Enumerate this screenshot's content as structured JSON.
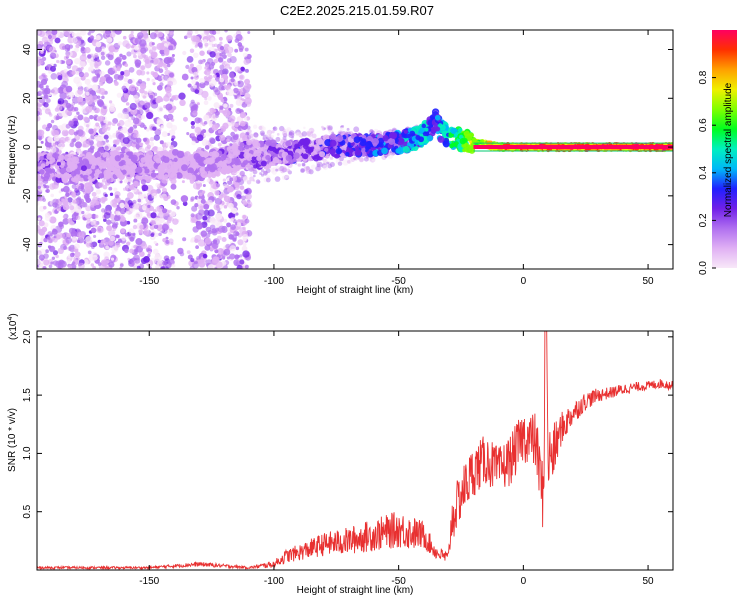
{
  "title": "C2E2.2025.215.01.59.R07",
  "colors": {
    "snr_line": "#e83030",
    "axis": "#000000",
    "colormap": [
      "#f8e8f8",
      "#e0b0f4",
      "#b070f0",
      "#7020e8",
      "#2020ff",
      "#00b8f8",
      "#00f0c0",
      "#00ff20",
      "#80ff00",
      "#f0f000",
      "#ffa000",
      "#ff3000",
      "#ff0060"
    ]
  },
  "chart_data": [
    {
      "type": "heatmap",
      "title": "C2E2.2025.215.01.59.R07",
      "xlabel": "Height of straight line (km)",
      "ylabel": "Frequency (Hz)",
      "xlim": [
        -195,
        60
      ],
      "ylim": [
        -50,
        48
      ],
      "xticks": [
        -150,
        -100,
        -50,
        0,
        50
      ],
      "yticks": [
        -40,
        -20,
        0,
        20,
        40
      ],
      "colorbar": {
        "label": "Normalized spectral amplitude",
        "range": [
          0,
          1
        ],
        "ticks": [
          0.0,
          0.2,
          0.4,
          0.6,
          0.8
        ]
      },
      "frequency_track": {
        "x": [
          -195,
          -180,
          -165,
          -150,
          -140,
          -130,
          -120,
          -110,
          -100,
          -90,
          -80,
          -70,
          -60,
          -50,
          -45,
          -40,
          -36,
          -35,
          -34,
          -30,
          -25,
          -20,
          -15,
          -10,
          -5,
          0,
          5,
          10,
          20,
          30,
          40,
          50,
          60
        ],
        "y": [
          -8,
          -9,
          -7,
          -8,
          -7,
          -8,
          -6,
          -3,
          -3,
          -2,
          0,
          1,
          1,
          2,
          3,
          5,
          9,
          12,
          8,
          4,
          3,
          2,
          1,
          0,
          0,
          0,
          0,
          0,
          0,
          0,
          0,
          0,
          0
        ],
        "amplitude": [
          0.25,
          0.22,
          0.2,
          0.22,
          0.18,
          0.2,
          0.22,
          0.25,
          0.3,
          0.3,
          0.32,
          0.35,
          0.38,
          0.45,
          0.5,
          0.55,
          0.4,
          0.35,
          0.5,
          0.6,
          0.7,
          0.78,
          0.85,
          0.9,
          0.92,
          0.95,
          0.95,
          0.97,
          0.98,
          0.98,
          0.99,
          0.99,
          0.99
        ]
      }
    },
    {
      "type": "line",
      "xlabel": "Height of straight line (km)",
      "ylabel": "SNR (10 * v/v)",
      "yscale_label": "(x10",
      "yscale_exponent": "4",
      "scale_factor": 10000,
      "xlim": [
        -195,
        60
      ],
      "ylim": [
        0,
        2.05
      ],
      "xticks": [
        -150,
        -100,
        -50,
        0,
        50
      ],
      "yticks": [
        0.5,
        1.0,
        1.5,
        2.0
      ],
      "series": [
        {
          "x": [
            -195,
            -150,
            -130,
            -110,
            -100,
            -95,
            -90,
            -80,
            -70,
            -60,
            -50,
            -45,
            -40,
            -35,
            -30,
            -29,
            -25,
            -20,
            -15,
            -10,
            -5,
            0,
            5,
            8,
            9,
            10,
            12,
            15,
            20,
            25,
            30,
            35,
            40,
            45,
            50,
            55,
            60
          ],
          "y": [
            0.02,
            0.02,
            0.05,
            0.02,
            0.05,
            0.12,
            0.15,
            0.22,
            0.25,
            0.3,
            0.35,
            0.32,
            0.3,
            0.15,
            0.1,
            0.4,
            0.65,
            0.85,
            0.95,
            0.85,
            0.95,
            1.15,
            1.1,
            0.6,
            2.0,
            0.95,
            1.0,
            1.2,
            1.35,
            1.45,
            1.5,
            1.52,
            1.55,
            1.57,
            1.58,
            1.6,
            1.58
          ],
          "noise": [
            0.01,
            0.01,
            0.02,
            0.01,
            0.03,
            0.06,
            0.07,
            0.1,
            0.12,
            0.14,
            0.16,
            0.15,
            0.12,
            0.06,
            0.06,
            0.2,
            0.22,
            0.22,
            0.22,
            0.2,
            0.22,
            0.22,
            0.25,
            0.3,
            0.4,
            0.3,
            0.25,
            0.15,
            0.1,
            0.08,
            0.06,
            0.05,
            0.05,
            0.04,
            0.04,
            0.04,
            0.04
          ]
        }
      ]
    }
  ]
}
